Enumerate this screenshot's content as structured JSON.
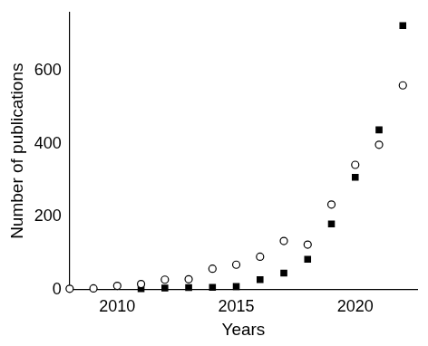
{
  "chart_data": {
    "type": "scatter",
    "x_label": "Years",
    "y_label": "Number of publications",
    "x": [
      2008,
      2009,
      2010,
      2011,
      2012,
      2013,
      2014,
      2015,
      2016,
      2017,
      2018,
      2019,
      2020,
      2021,
      2022
    ],
    "series": [
      {
        "color": "#000000",
        "marker": "open_circle",
        "values": [
          2,
          3,
          10,
          15,
          27,
          28,
          57,
          68,
          90,
          133,
          123,
          233,
          342,
          397,
          560
        ]
      },
      {
        "color": "#000000",
        "marker": "square",
        "values": [
          null,
          null,
          null,
          2,
          4,
          5,
          6,
          8,
          27,
          45,
          83,
          180,
          308,
          438,
          724
        ]
      }
    ],
    "xlim": [
      2008,
      2022.6
    ],
    "xticks": [
      2010,
      2015,
      2020
    ],
    "ylim": [
      0,
      760
    ],
    "yticks": [
      0,
      200,
      400,
      600
    ],
    "grid": false
  }
}
